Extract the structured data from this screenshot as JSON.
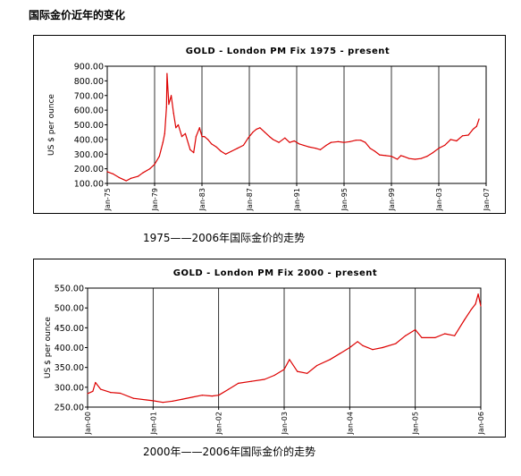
{
  "page": {
    "title": "国际金价近年的变化"
  },
  "charts": [
    {
      "caption": "1975——2006年国际金价的走势"
    },
    {
      "caption": "2000年——2006年国际金价的走势"
    }
  ],
  "colors": {
    "series": "#dd0000",
    "grid": "#000000",
    "frame": "#000000"
  },
  "chart_data": [
    {
      "type": "line",
      "title": "GOLD - London PM Fix 1975 - present",
      "xlabel": "",
      "ylabel": "US $ per ounce",
      "ylim": [
        100,
        900
      ],
      "yticks": [
        "900.00",
        "800.00",
        "700.00",
        "600.00",
        "500.00",
        "400.00",
        "300.00",
        "200.00",
        "100.00"
      ],
      "xticks": [
        "Jan-75",
        "Jan-79",
        "Jan-83",
        "Jan-87",
        "Jan-91",
        "Jan-95",
        "Jan-99",
        "Jan-03",
        "Jan-07"
      ],
      "grid": "vertical lines at each x tick",
      "series": [
        {
          "x": [
            1975.0,
            1975.5,
            1976.0,
            1976.6,
            1977.0,
            1977.6,
            1978.0,
            1978.6,
            1979.0,
            1979.4,
            1979.7,
            1979.85,
            1980.0,
            1980.05,
            1980.2,
            1980.4,
            1980.6,
            1980.8,
            1981.0,
            1981.3,
            1981.6,
            1982.0,
            1982.3,
            1982.5,
            1982.8,
            1983.0,
            1983.2,
            1983.5,
            1983.8,
            1984.2,
            1984.6,
            1985.0,
            1985.5,
            1986.0,
            1986.5,
            1986.9,
            1987.3,
            1987.6,
            1987.9,
            1988.3,
            1988.7,
            1989.0,
            1989.5,
            1990.0,
            1990.4,
            1990.8,
            1991.2,
            1991.6,
            1992.0,
            1992.6,
            1993.0,
            1993.5,
            1993.9,
            1994.5,
            1995.0,
            1995.5,
            1996.0,
            1996.4,
            1996.8,
            1997.2,
            1997.6,
            1998.0,
            1998.5,
            1999.0,
            1999.5,
            1999.8,
            2000.0,
            2000.5,
            2001.0,
            2001.5,
            2002.0,
            2002.5,
            2003.0,
            2003.5,
            2004.0,
            2004.5,
            2005.0,
            2005.5,
            2005.9,
            2006.2,
            2006.4
          ],
          "y": [
            180,
            165,
            140,
            118,
            135,
            148,
            172,
            200,
            230,
            285,
            380,
            440,
            620,
            850,
            640,
            700,
            580,
            480,
            500,
            420,
            440,
            330,
            310,
            420,
            480,
            420,
            420,
            400,
            370,
            350,
            320,
            300,
            320,
            340,
            360,
            410,
            450,
            470,
            480,
            450,
            420,
            400,
            380,
            410,
            380,
            390,
            370,
            360,
            350,
            340,
            330,
            360,
            380,
            385,
            380,
            385,
            395,
            395,
            380,
            340,
            320,
            295,
            290,
            285,
            265,
            290,
            285,
            270,
            265,
            270,
            285,
            310,
            340,
            360,
            400,
            390,
            425,
            430,
            470,
            490,
            540
          ]
        }
      ]
    },
    {
      "type": "line",
      "title": "GOLD - London PM Fix 2000 - present",
      "xlabel": "",
      "ylabel": "US $ per ounce",
      "ylim": [
        250,
        550
      ],
      "yticks": [
        "550.00",
        "500.00",
        "450.00",
        "400.00",
        "350.00",
        "300.00",
        "250.00"
      ],
      "xticks": [
        "Jan-00",
        "Jan-01",
        "Jan-02",
        "Jan-03",
        "Jan-04",
        "Jan-05",
        "Jan-06"
      ],
      "grid": "vertical lines at each x tick",
      "series": [
        {
          "x": [
            2000.0,
            2000.08,
            2000.12,
            2000.2,
            2000.35,
            2000.5,
            2000.7,
            2000.9,
            2001.0,
            2001.15,
            2001.3,
            2001.45,
            2001.6,
            2001.75,
            2001.9,
            2002.0,
            2002.15,
            2002.3,
            2002.5,
            2002.7,
            2002.85,
            2003.0,
            2003.08,
            2003.2,
            2003.35,
            2003.5,
            2003.7,
            2003.85,
            2004.0,
            2004.12,
            2004.2,
            2004.35,
            2004.5,
            2004.7,
            2004.85,
            2005.0,
            2005.1,
            2005.3,
            2005.45,
            2005.6,
            2005.75,
            2005.85,
            2005.92,
            2005.96,
            2006.0
          ],
          "y": [
            284,
            290,
            312,
            295,
            287,
            285,
            272,
            268,
            266,
            262,
            265,
            270,
            275,
            280,
            278,
            280,
            295,
            310,
            315,
            320,
            330,
            345,
            370,
            340,
            335,
            355,
            370,
            385,
            400,
            415,
            405,
            395,
            400,
            410,
            430,
            445,
            425,
            425,
            435,
            430,
            470,
            495,
            510,
            535,
            505
          ]
        }
      ]
    }
  ]
}
